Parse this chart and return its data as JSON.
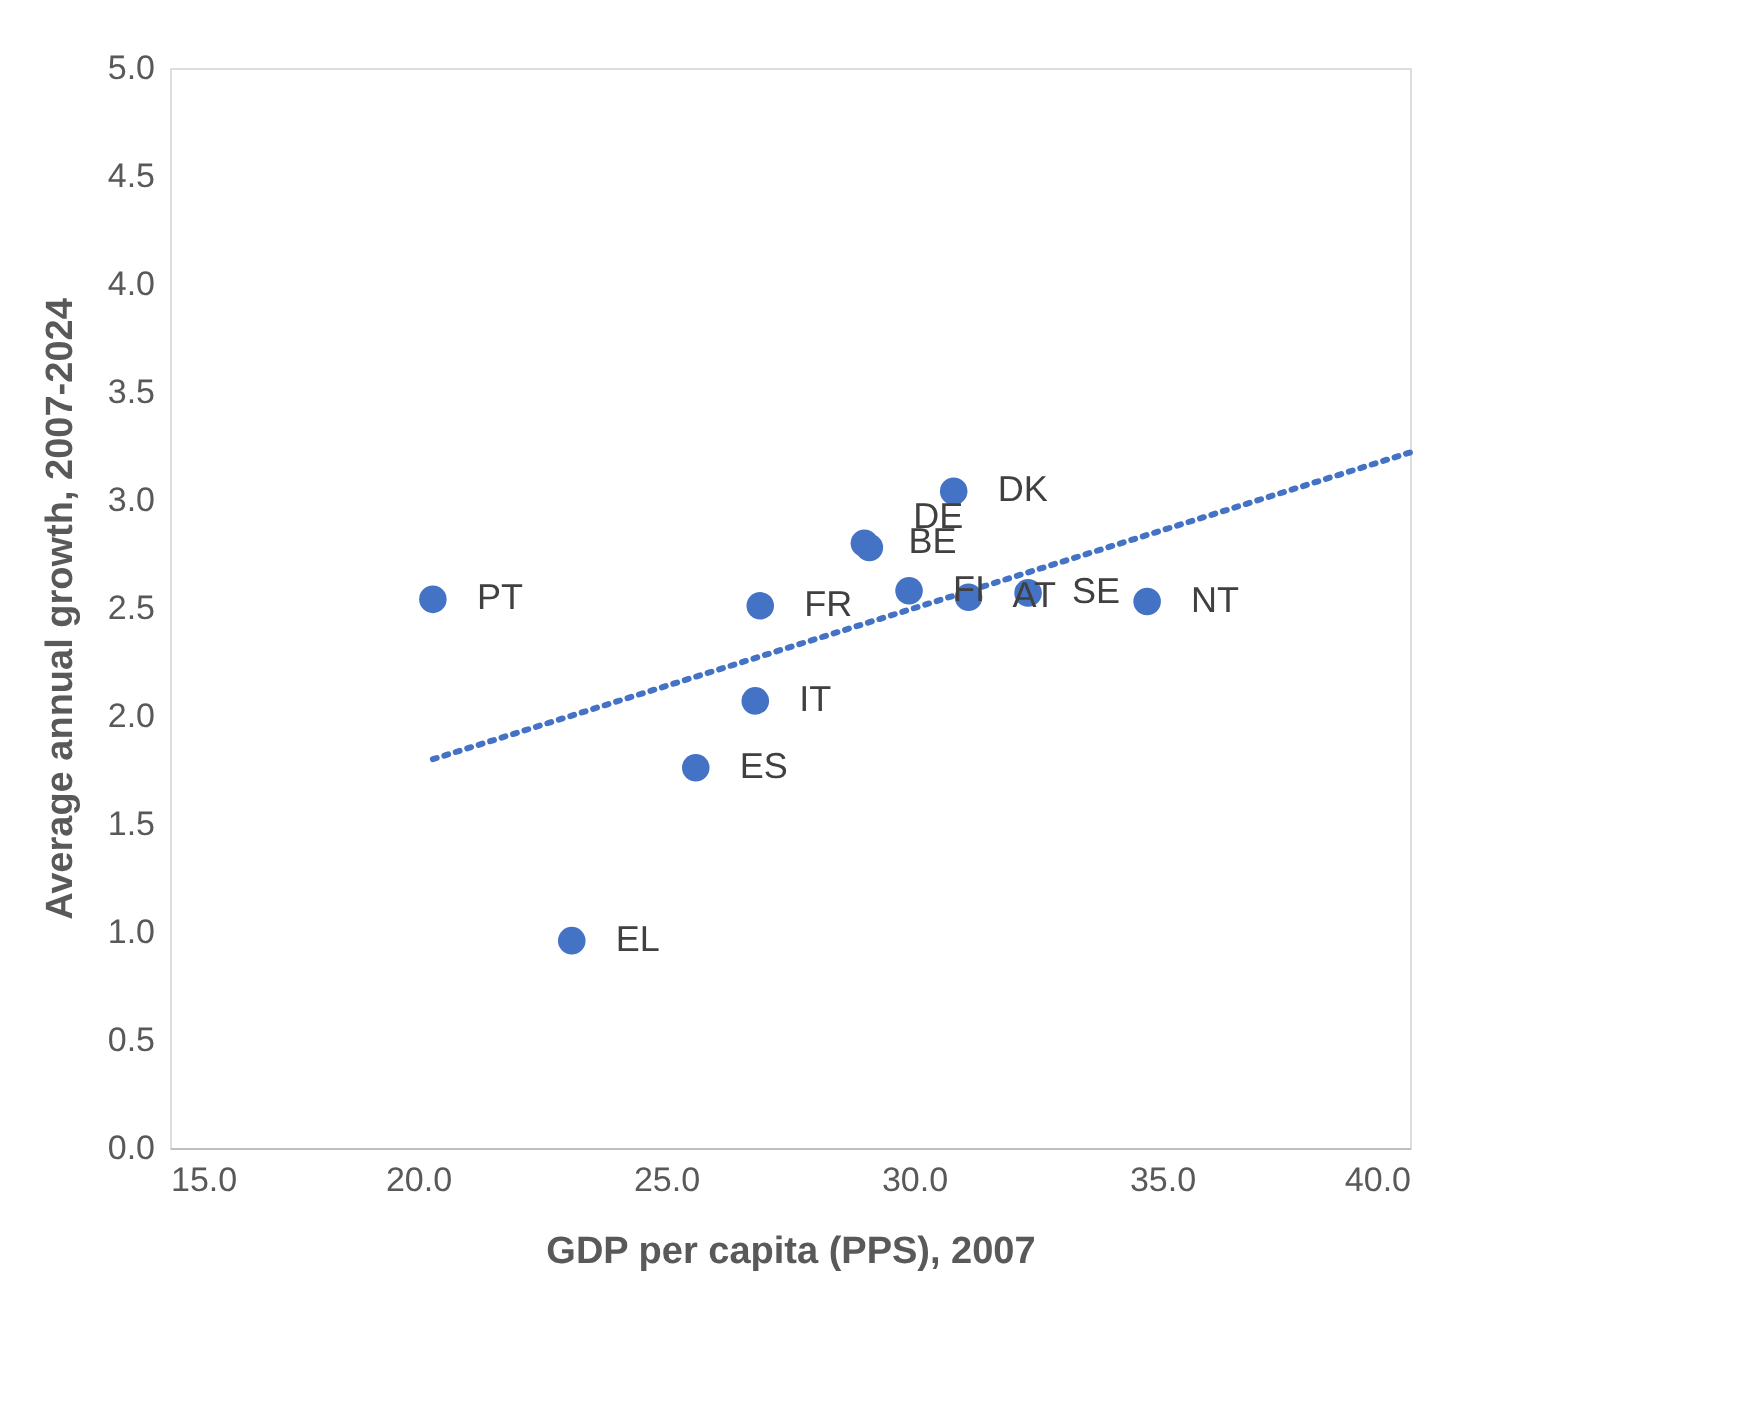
{
  "chart_data": {
    "type": "scatter",
    "xlabel": "GDP per capita (PPS), 2007",
    "ylabel": "Average annual growth, 2007-2024",
    "xlim": [
      15,
      40
    ],
    "xticks": [
      {
        "value": 15,
        "label": "15.0"
      },
      {
        "value": 20,
        "label": "20.0"
      },
      {
        "value": 25,
        "label": "25.0"
      },
      {
        "value": 30,
        "label": "30.0"
      },
      {
        "value": 35,
        "label": "35.0"
      },
      {
        "value": 40,
        "label": "40.0"
      }
    ],
    "ylim": [
      0,
      5
    ],
    "yticks": [
      {
        "value": 0,
        "label": "0.0"
      },
      {
        "value": 0.5,
        "label": "0.5"
      },
      {
        "value": 1,
        "label": "1.0"
      },
      {
        "value": 1.5,
        "label": "1.5"
      },
      {
        "value": 2,
        "label": "2.0"
      },
      {
        "value": 2.5,
        "label": "2.5"
      },
      {
        "value": 3,
        "label": "3.0"
      },
      {
        "value": 3.5,
        "label": "3.5"
      },
      {
        "value": 4,
        "label": "4.0"
      },
      {
        "value": 4.5,
        "label": "4.5"
      },
      {
        "value": 5,
        "label": "5.0"
      }
    ],
    "grid": false,
    "legend": false,
    "marker": "circle",
    "series": [
      {
        "color": "#4472c4",
        "x": [
          20.3,
          23.1,
          25.6,
          26.8,
          26.9,
          29.0,
          29.1,
          29.9,
          30.8,
          31.1,
          32.3,
          34.7
        ],
        "values": [
          2.54,
          0.96,
          1.76,
          2.07,
          2.51,
          2.8,
          2.78,
          2.58,
          3.04,
          2.55,
          2.57,
          2.53
        ]
      },
      {
        "type": "line",
        "color": "#4472c4",
        "line_style": "dotted",
        "marker": "none",
        "x": [
          20.3,
          40
        ],
        "values": [
          1.8,
          3.22
        ]
      }
    ],
    "annotations": [
      {
        "text": "PT",
        "x": 20.3,
        "y": 2.54
      },
      {
        "text": "EL",
        "x": 23.1,
        "y": 0.96
      },
      {
        "text": "ES",
        "x": 25.6,
        "y": 1.76
      },
      {
        "text": "IT",
        "x": 26.8,
        "y": 2.07
      },
      {
        "text": "FR",
        "x": 26.9,
        "y": 2.51
      },
      {
        "text": "BE",
        "x": 29.0,
        "y": 2.8
      },
      {
        "text": "DE",
        "x": 29.1,
        "y": 2.78
      },
      {
        "text": "FI",
        "x": 29.9,
        "y": 2.58
      },
      {
        "text": "DK",
        "x": 30.8,
        "y": 3.04
      },
      {
        "text": "AT",
        "x": 31.1,
        "y": 2.55
      },
      {
        "text": "SE",
        "x": 32.3,
        "y": 2.57
      },
      {
        "text": "NT",
        "x": 34.7,
        "y": 2.53
      }
    ]
  }
}
